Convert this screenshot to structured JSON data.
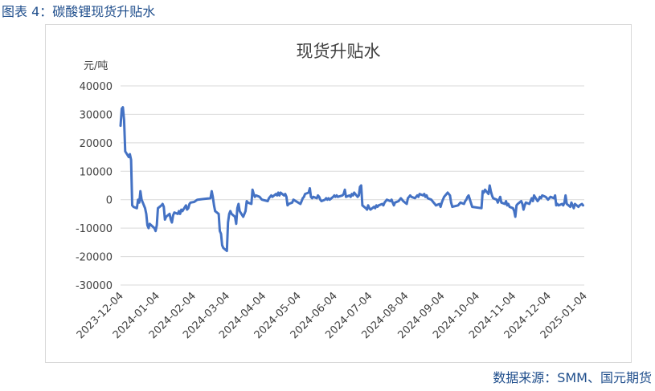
{
  "caption": "图表 4：碳酸锂现货升贴水",
  "source": "数据来源：SMM、国元期货",
  "colors": {
    "line": "#4472c4",
    "grid": "#d9d9d9",
    "caption": "#1f4e8c"
  },
  "chart_data": {
    "type": "line",
    "title": "现货升贴水",
    "ylabel": "元/吨",
    "xlabel": "",
    "ylim": [
      -30000,
      40000
    ],
    "yticks": [
      40000,
      30000,
      20000,
      10000,
      0,
      -10000,
      -20000,
      -30000
    ],
    "xticks": [
      "2023-12-04",
      "2024-01-04",
      "2024-02-04",
      "2024-03-04",
      "2024-04-04",
      "2024-05-04",
      "2024-06-04",
      "2024-07-04",
      "2024-08-04",
      "2024-09-04",
      "2024-10-04",
      "2024-11-04",
      "2024-12-04",
      "2025-01-04"
    ],
    "grid": true,
    "legend": "none",
    "series": [
      {
        "points": [
          [
            "2023-12-04",
            26000
          ],
          [
            "2023-12-05",
            32000
          ],
          [
            "2023-12-06",
            32500
          ],
          [
            "2023-12-07",
            28000
          ],
          [
            "2023-12-08",
            17000
          ],
          [
            "2023-12-11",
            15000
          ],
          [
            "2023-12-12",
            16000
          ],
          [
            "2023-12-13",
            14000
          ],
          [
            "2023-12-14",
            -2000
          ],
          [
            "2023-12-15",
            -2500
          ],
          [
            "2023-12-18",
            -3000
          ],
          [
            "2023-12-19",
            0
          ],
          [
            "2023-12-20",
            -1000
          ],
          [
            "2023-12-21",
            3000
          ],
          [
            "2023-12-22",
            0
          ],
          [
            "2023-12-25",
            -3000
          ],
          [
            "2023-12-26",
            -5000
          ],
          [
            "2023-12-27",
            -9000
          ],
          [
            "2023-12-28",
            -10000
          ],
          [
            "2023-12-29",
            -8500
          ],
          [
            "2024-01-02",
            -10000
          ],
          [
            "2024-01-03",
            -11000
          ],
          [
            "2024-01-04",
            -9000
          ],
          [
            "2024-01-05",
            -3000
          ],
          [
            "2024-01-08",
            -2000
          ],
          [
            "2024-01-09",
            -1500
          ],
          [
            "2024-01-10",
            -2500
          ],
          [
            "2024-01-11",
            -7000
          ],
          [
            "2024-01-12",
            -6000
          ],
          [
            "2024-01-15",
            -5000
          ],
          [
            "2024-01-16",
            -7000
          ],
          [
            "2024-01-17",
            -8000
          ],
          [
            "2024-01-18",
            -5500
          ],
          [
            "2024-01-19",
            -4500
          ],
          [
            "2024-01-22",
            -5000
          ],
          [
            "2024-01-23",
            -4000
          ],
          [
            "2024-01-24",
            -5000
          ],
          [
            "2024-01-25",
            -3500
          ],
          [
            "2024-01-26",
            -4000
          ],
          [
            "2024-01-29",
            -2000
          ],
          [
            "2024-01-30",
            -3500
          ],
          [
            "2024-01-31",
            -3000
          ],
          [
            "2024-02-01",
            -1500
          ],
          [
            "2024-02-02",
            -1000
          ],
          [
            "2024-02-05",
            -800
          ],
          [
            "2024-02-06",
            -500
          ],
          [
            "2024-02-07",
            -200
          ],
          [
            "2024-02-08",
            0
          ],
          [
            "2024-02-19",
            500
          ],
          [
            "2024-02-20",
            3000
          ],
          [
            "2024-02-21",
            1000
          ],
          [
            "2024-02-22",
            -2000
          ],
          [
            "2024-02-23",
            -4000
          ],
          [
            "2024-02-26",
            -5000
          ],
          [
            "2024-02-27",
            -11000
          ],
          [
            "2024-02-28",
            -12000
          ],
          [
            "2024-02-29",
            -16000
          ],
          [
            "2024-03-01",
            -17000
          ],
          [
            "2024-03-04",
            -18000
          ],
          [
            "2024-03-05",
            -8000
          ],
          [
            "2024-03-06",
            -5000
          ],
          [
            "2024-03-07",
            -4000
          ],
          [
            "2024-03-08",
            -5000
          ],
          [
            "2024-03-11",
            -6000
          ],
          [
            "2024-03-12",
            -8500
          ],
          [
            "2024-03-13",
            -3000
          ],
          [
            "2024-03-14",
            -1500
          ],
          [
            "2024-03-15",
            -4000
          ],
          [
            "2024-03-18",
            -6000
          ],
          [
            "2024-03-19",
            -5000
          ],
          [
            "2024-03-20",
            -4000
          ],
          [
            "2024-03-21",
            -500
          ],
          [
            "2024-03-22",
            -1000
          ],
          [
            "2024-03-25",
            -1500
          ],
          [
            "2024-03-26",
            3500
          ],
          [
            "2024-03-27",
            2000
          ],
          [
            "2024-03-28",
            1000
          ],
          [
            "2024-03-29",
            1500
          ],
          [
            "2024-04-01",
            1000
          ],
          [
            "2024-04-02",
            500
          ],
          [
            "2024-04-03",
            0
          ],
          [
            "2024-04-08",
            -500
          ],
          [
            "2024-04-09",
            500
          ],
          [
            "2024-04-10",
            1000
          ],
          [
            "2024-04-11",
            1500
          ],
          [
            "2024-04-12",
            1000
          ],
          [
            "2024-04-15",
            2000
          ],
          [
            "2024-04-16",
            1500
          ],
          [
            "2024-04-17",
            2500
          ],
          [
            "2024-04-18",
            1500
          ],
          [
            "2024-04-19",
            2500
          ],
          [
            "2024-04-22",
            1500
          ],
          [
            "2024-04-23",
            2000
          ],
          [
            "2024-04-24",
            1000
          ],
          [
            "2024-04-25",
            -2000
          ],
          [
            "2024-04-26",
            -1500
          ],
          [
            "2024-04-29",
            -1000
          ],
          [
            "2024-04-30",
            0
          ],
          [
            "2024-05-06",
            -1500
          ],
          [
            "2024-05-07",
            -500
          ],
          [
            "2024-05-08",
            500
          ],
          [
            "2024-05-09",
            1000
          ],
          [
            "2024-05-10",
            2000
          ],
          [
            "2024-05-13",
            2500
          ],
          [
            "2024-05-14",
            4000
          ],
          [
            "2024-05-15",
            1000
          ],
          [
            "2024-05-16",
            500
          ],
          [
            "2024-05-17",
            1000
          ],
          [
            "2024-05-20",
            500
          ],
          [
            "2024-05-21",
            1500
          ],
          [
            "2024-05-22",
            1000
          ],
          [
            "2024-05-23",
            0
          ],
          [
            "2024-05-24",
            -500
          ],
          [
            "2024-05-27",
            0
          ],
          [
            "2024-05-28",
            500
          ],
          [
            "2024-05-29",
            0
          ],
          [
            "2024-05-30",
            500
          ],
          [
            "2024-05-31",
            0
          ],
          [
            "2024-06-03",
            1000
          ],
          [
            "2024-06-04",
            1500
          ],
          [
            "2024-06-05",
            1000
          ],
          [
            "2024-06-06",
            1500
          ],
          [
            "2024-06-07",
            1000
          ],
          [
            "2024-06-11",
            1500
          ],
          [
            "2024-06-12",
            2000
          ],
          [
            "2024-06-13",
            3500
          ],
          [
            "2024-06-14",
            1000
          ],
          [
            "2024-06-17",
            1500
          ],
          [
            "2024-06-18",
            1000
          ],
          [
            "2024-06-19",
            2000
          ],
          [
            "2024-06-20",
            1500
          ],
          [
            "2024-06-21",
            2500
          ],
          [
            "2024-06-24",
            1000
          ],
          [
            "2024-06-25",
            1500
          ],
          [
            "2024-06-26",
            4500
          ],
          [
            "2024-06-27",
            5000
          ],
          [
            "2024-06-28",
            -2000
          ],
          [
            "2024-07-01",
            -3000
          ],
          [
            "2024-07-02",
            -3500
          ],
          [
            "2024-07-03",
            -2000
          ],
          [
            "2024-07-04",
            -3000
          ],
          [
            "2024-07-05",
            -3500
          ],
          [
            "2024-07-08",
            -2500
          ],
          [
            "2024-07-09",
            -3000
          ],
          [
            "2024-07-10",
            -2000
          ],
          [
            "2024-07-11",
            -2500
          ],
          [
            "2024-07-12",
            -2000
          ],
          [
            "2024-07-15",
            -1500
          ],
          [
            "2024-07-16",
            -2000
          ],
          [
            "2024-07-17",
            -1000
          ],
          [
            "2024-07-18",
            -500
          ],
          [
            "2024-07-19",
            0
          ],
          [
            "2024-07-22",
            -500
          ],
          [
            "2024-07-23",
            0
          ],
          [
            "2024-07-24",
            -1000
          ],
          [
            "2024-07-25",
            -2000
          ],
          [
            "2024-07-26",
            -1000
          ],
          [
            "2024-07-29",
            -500
          ],
          [
            "2024-07-30",
            0
          ],
          [
            "2024-07-31",
            500
          ],
          [
            "2024-08-01",
            0
          ],
          [
            "2024-08-02",
            -500
          ],
          [
            "2024-08-05",
            -1500
          ],
          [
            "2024-08-06",
            500
          ],
          [
            "2024-08-07",
            1000
          ],
          [
            "2024-08-08",
            1500
          ],
          [
            "2024-08-09",
            1000
          ],
          [
            "2024-08-12",
            500
          ],
          [
            "2024-08-13",
            1000
          ],
          [
            "2024-08-14",
            1500
          ],
          [
            "2024-08-15",
            1000
          ],
          [
            "2024-08-16",
            2000
          ],
          [
            "2024-08-19",
            1500
          ],
          [
            "2024-08-20",
            2000
          ],
          [
            "2024-08-21",
            1000
          ],
          [
            "2024-08-22",
            1500
          ],
          [
            "2024-08-23",
            500
          ],
          [
            "2024-08-26",
            0
          ],
          [
            "2024-08-27",
            -500
          ],
          [
            "2024-08-28",
            -1000
          ],
          [
            "2024-08-29",
            -1500
          ],
          [
            "2024-08-30",
            -2000
          ],
          [
            "2024-09-02",
            -1500
          ],
          [
            "2024-09-03",
            -2500
          ],
          [
            "2024-09-04",
            -1000
          ],
          [
            "2024-09-05",
            0
          ],
          [
            "2024-09-06",
            1000
          ],
          [
            "2024-09-09",
            2500
          ],
          [
            "2024-09-10",
            2000
          ],
          [
            "2024-09-11",
            1500
          ],
          [
            "2024-09-12",
            -1000
          ],
          [
            "2024-09-13",
            -2500
          ],
          [
            "2024-09-18",
            -2000
          ],
          [
            "2024-09-19",
            -1500
          ],
          [
            "2024-09-20",
            -1000
          ],
          [
            "2024-09-23",
            -1500
          ],
          [
            "2024-09-24",
            -500
          ],
          [
            "2024-09-25",
            0
          ],
          [
            "2024-09-26",
            1000
          ],
          [
            "2024-09-27",
            1500
          ],
          [
            "2024-09-30",
            -2500
          ],
          [
            "2024-10-08",
            -3000
          ],
          [
            "2024-10-09",
            3000
          ],
          [
            "2024-10-10",
            2500
          ],
          [
            "2024-10-11",
            3500
          ],
          [
            "2024-10-14",
            2000
          ],
          [
            "2024-10-15",
            5000
          ],
          [
            "2024-10-16",
            3000
          ],
          [
            "2024-10-17",
            1500
          ],
          [
            "2024-10-18",
            500
          ],
          [
            "2024-10-21",
            0
          ],
          [
            "2024-10-22",
            -1000
          ],
          [
            "2024-10-23",
            0
          ],
          [
            "2024-10-24",
            1000
          ],
          [
            "2024-10-25",
            -1000
          ],
          [
            "2024-10-28",
            -1500
          ],
          [
            "2024-10-29",
            -500
          ],
          [
            "2024-10-30",
            -2000
          ],
          [
            "2024-10-31",
            -1500
          ],
          [
            "2024-11-01",
            -2500
          ],
          [
            "2024-11-04",
            -3000
          ],
          [
            "2024-11-05",
            -4000
          ],
          [
            "2024-11-06",
            -6000
          ],
          [
            "2024-11-07",
            -2000
          ],
          [
            "2024-11-08",
            -1500
          ],
          [
            "2024-11-11",
            -500
          ],
          [
            "2024-11-12",
            -1500
          ],
          [
            "2024-11-13",
            -3500
          ],
          [
            "2024-11-14",
            -2000
          ],
          [
            "2024-11-15",
            -1000
          ],
          [
            "2024-11-18",
            -1500
          ],
          [
            "2024-11-19",
            -500
          ],
          [
            "2024-11-20",
            500
          ],
          [
            "2024-11-21",
            -500
          ],
          [
            "2024-11-22",
            1500
          ],
          [
            "2024-11-25",
            -500
          ],
          [
            "2024-11-26",
            0
          ],
          [
            "2024-11-27",
            1000
          ],
          [
            "2024-11-28",
            500
          ],
          [
            "2024-11-29",
            1500
          ],
          [
            "2024-12-02",
            1000
          ],
          [
            "2024-12-03",
            500
          ],
          [
            "2024-12-04",
            0
          ],
          [
            "2024-12-05",
            500
          ],
          [
            "2024-12-06",
            1000
          ],
          [
            "2024-12-09",
            500
          ],
          [
            "2024-12-10",
            1500
          ],
          [
            "2024-12-11",
            -2000
          ],
          [
            "2024-12-12",
            -1500
          ],
          [
            "2024-12-13",
            -2000
          ],
          [
            "2024-12-16",
            -1500
          ],
          [
            "2024-12-17",
            -2000
          ],
          [
            "2024-12-18",
            -1000
          ],
          [
            "2024-12-19",
            1500
          ],
          [
            "2024-12-20",
            -1500
          ],
          [
            "2024-12-23",
            -2500
          ],
          [
            "2024-12-24",
            -1000
          ],
          [
            "2024-12-25",
            -2000
          ],
          [
            "2024-12-26",
            -3000
          ],
          [
            "2024-12-27",
            -1500
          ],
          [
            "2024-12-30",
            -2500
          ],
          [
            "2024-12-31",
            -2000
          ],
          [
            "2025-01-02",
            -1500
          ],
          [
            "2025-01-03",
            -2000
          ]
        ]
      }
    ]
  }
}
